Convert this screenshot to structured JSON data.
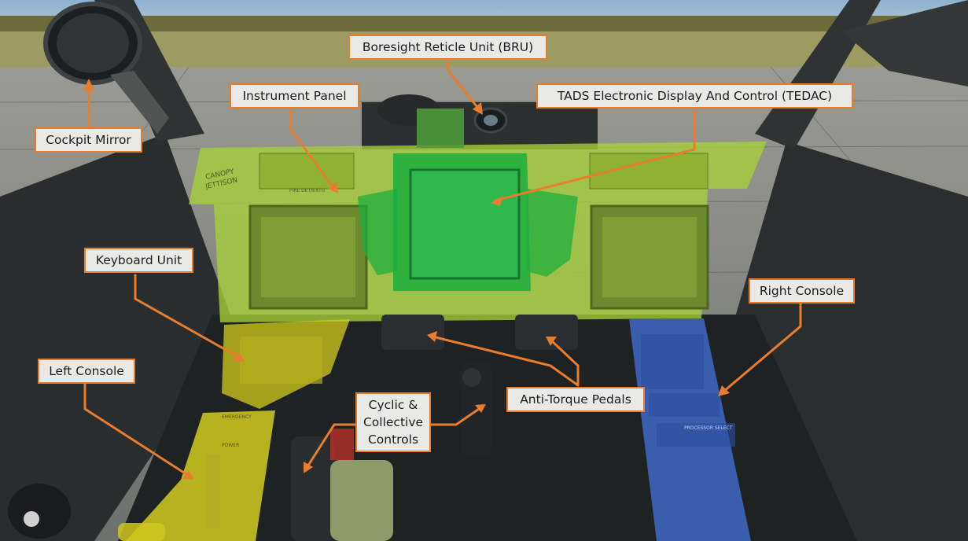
{
  "labels": {
    "cockpit_mirror": "Cockpit Mirror",
    "boresight_reticle_unit": "Boresight Reticle Unit (BRU)",
    "instrument_panel": "Instrument Panel",
    "tedac": "TADS Electronic Display And Control (TEDAC)",
    "keyboard_unit": "Keyboard Unit",
    "right_console": "Right Console",
    "left_console": "Left Console",
    "cyclic_collective": [
      "Cyclic &",
      "Collective",
      "Controls"
    ],
    "anti_torque_pedals": "Anti-Torque Pedals"
  },
  "colors": {
    "callout_border": "#e97d2e",
    "callout_fill": "#e9e9e7",
    "instrument_panel_highlight": "#a6d13a",
    "tedac_highlight": "#1fae3e",
    "keyboard_left_console_highlight": "#d9d21e",
    "right_console_highlight": "#3f69c6"
  },
  "panel_text": {
    "canopy_jettison": [
      "CANOPY",
      "JETTISON"
    ],
    "fire_det_extg": "FIRE DET/EXTG",
    "emergency": "EMERGENCY",
    "power": "POWER",
    "processor_select": "PROCESSOR SELECT"
  }
}
